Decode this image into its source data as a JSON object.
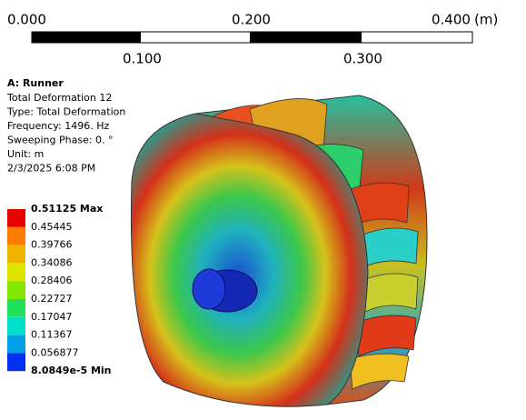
{
  "scale_bar": {
    "labels": [
      "0.000",
      "0.100",
      "0.200",
      "0.300",
      "0.400"
    ],
    "unit": "(m)"
  },
  "info": {
    "title": "A: Runner",
    "lines": [
      "Total Deformation 12",
      "Type: Total Deformation",
      "Frequency: 1496. Hz",
      "Sweeping Phase: 0. °",
      "Unit: m",
      "2/3/2025 6:08 PM"
    ]
  },
  "legend": {
    "labels": [
      "0.51125 Max",
      "0.45445",
      "0.39766",
      "0.34086",
      "0.28406",
      "0.22727",
      "0.17047",
      "0.11367",
      "0.056877",
      "8.0849e-5 Min"
    ]
  }
}
